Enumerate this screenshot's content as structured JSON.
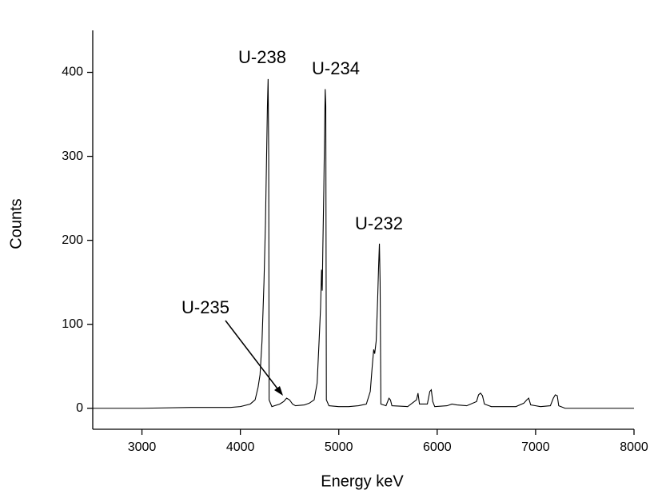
{
  "chart_data": {
    "type": "line",
    "xlabel": "Energy keV",
    "ylabel": "Counts",
    "x": [
      2500,
      3000,
      3500,
      3900,
      4000,
      4100,
      4150,
      4180,
      4200,
      4220,
      4240,
      4255,
      4265,
      4275,
      4282,
      4288,
      4292,
      4320,
      4400,
      4440,
      4470,
      4500,
      4530,
      4560,
      4650,
      4700,
      4750,
      4780,
      4800,
      4815,
      4825,
      4832,
      4838,
      4848,
      4856,
      4862,
      4868,
      4874,
      4900,
      5000,
      5100,
      5200,
      5280,
      5320,
      5340,
      5355,
      5365,
      5380,
      5395,
      5405,
      5413,
      5420,
      5428,
      5480,
      5510,
      5525,
      5540,
      5700,
      5790,
      5805,
      5820,
      5900,
      5925,
      5940,
      5955,
      5975,
      6100,
      6150,
      6200,
      6300,
      6400,
      6420,
      6440,
      6460,
      6480,
      6550,
      6800,
      6880,
      6910,
      6930,
      6950,
      7050,
      7150,
      7180,
      7200,
      7220,
      7235,
      7300,
      7600,
      8000
    ],
    "values": [
      0,
      0,
      1,
      1,
      2,
      5,
      10,
      25,
      40,
      80,
      150,
      220,
      290,
      360,
      392,
      300,
      10,
      2,
      5,
      8,
      12,
      10,
      5,
      3,
      4,
      6,
      10,
      30,
      80,
      120,
      165,
      140,
      190,
      260,
      330,
      380,
      360,
      10,
      3,
      2,
      2,
      3,
      5,
      20,
      50,
      70,
      65,
      80,
      130,
      170,
      196,
      150,
      5,
      3,
      12,
      10,
      3,
      2,
      10,
      18,
      5,
      5,
      20,
      22,
      8,
      2,
      3,
      5,
      4,
      3,
      8,
      16,
      18,
      15,
      5,
      2,
      2,
      6,
      10,
      12,
      4,
      2,
      3,
      12,
      16,
      15,
      3,
      0,
      0,
      0
    ],
    "color": "#000000",
    "xlim": [
      2500,
      8000
    ],
    "xticks": [
      3000,
      4000,
      5000,
      6000,
      7000,
      8000
    ],
    "ylim": [
      -25,
      450
    ],
    "yticks": [
      0,
      100,
      200,
      300,
      400
    ],
    "grid": false,
    "annotations": [
      {
        "text": "U-238"
      },
      {
        "text": "U-234"
      },
      {
        "text": "U-232"
      },
      {
        "text": "U-235"
      }
    ]
  }
}
